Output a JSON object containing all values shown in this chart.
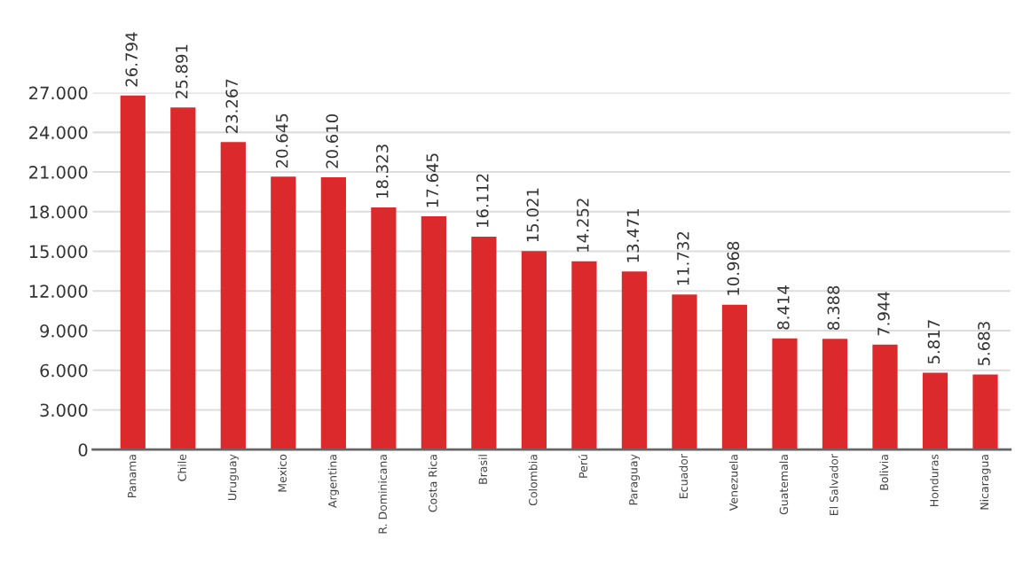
{
  "chart_data": {
    "type": "bar",
    "categories": [
      "Panama",
      "Chile",
      "Uruguay",
      "Mexico",
      "Argentina",
      "R. Dominicana",
      "Costa Rica",
      "Brasil",
      "Colombia",
      "Perú",
      "Paraguay",
      "Ecuador",
      "Venezuela",
      "Guatemala",
      "El Salvador",
      "Bolivia",
      "Honduras",
      "Nicaragua"
    ],
    "values": [
      26794,
      25891,
      23267,
      20645,
      20610,
      18323,
      17645,
      16112,
      15021,
      14252,
      13471,
      11732,
      10968,
      8414,
      8388,
      7944,
      5817,
      5683
    ],
    "value_labels": [
      "26.794",
      "25.891",
      "23.267",
      "20.645",
      "20.610",
      "18.323",
      "17.645",
      "16.112",
      "15.021",
      "14.252",
      "13.471",
      "11.732",
      "10.968",
      "8.414",
      "8.388",
      "7.944",
      "5.817",
      "5.683"
    ],
    "color": "#dc2a2c",
    "ylim": [
      0,
      27000
    ],
    "yticks": [
      {
        "value": 0,
        "label": "0"
      },
      {
        "value": 3000,
        "label": "3.000"
      },
      {
        "value": 6000,
        "label": "6.000"
      },
      {
        "value": 9000,
        "label": "9.000"
      },
      {
        "value": 12000,
        "label": "12.000"
      },
      {
        "value": 15000,
        "label": "15.000"
      },
      {
        "value": 18000,
        "label": "18.000"
      },
      {
        "value": 21000,
        "label": "21.000"
      },
      {
        "value": 24000,
        "label": "24.000"
      },
      {
        "value": 27000,
        "label": "27.000"
      }
    ],
    "grid": "y"
  }
}
